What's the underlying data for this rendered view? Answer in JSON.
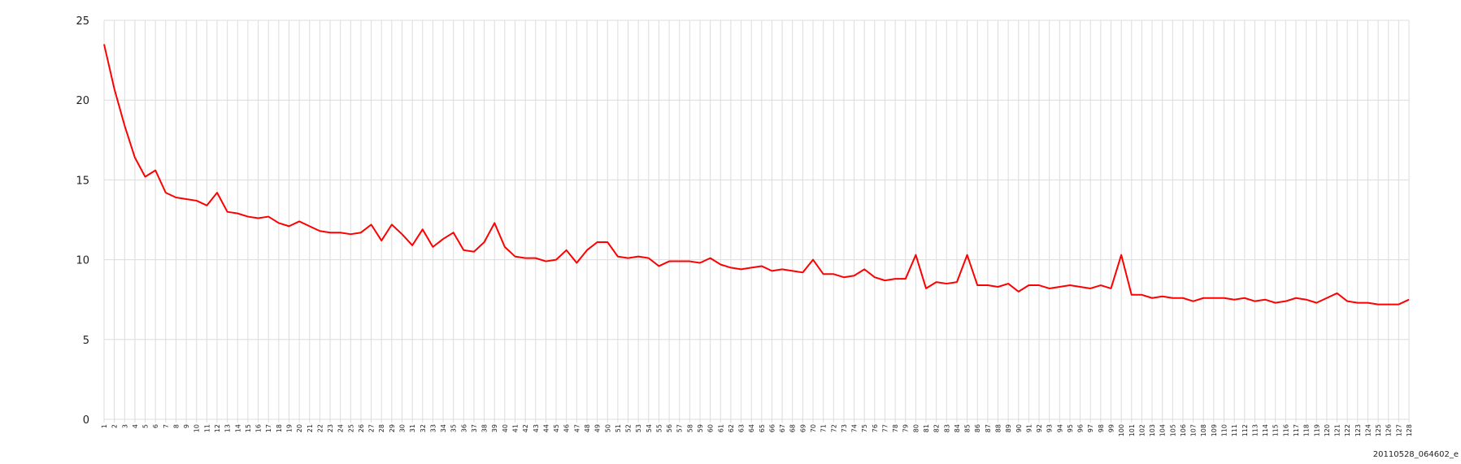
{
  "chart_data": {
    "type": "line",
    "categories": [
      1,
      2,
      3,
      4,
      5,
      6,
      7,
      8,
      9,
      10,
      11,
      12,
      13,
      14,
      15,
      16,
      17,
      18,
      19,
      20,
      21,
      22,
      23,
      24,
      25,
      26,
      27,
      28,
      29,
      30,
      31,
      32,
      33,
      34,
      35,
      36,
      37,
      38,
      39,
      40,
      41,
      42,
      43,
      44,
      45,
      46,
      47,
      48,
      49,
      50,
      51,
      52,
      53,
      54,
      55,
      56,
      57,
      58,
      59,
      60,
      61,
      62,
      63,
      64,
      65,
      66,
      67,
      68,
      69,
      70,
      71,
      72,
      73,
      74,
      75,
      76,
      77,
      78,
      79,
      80,
      81,
      82,
      83,
      84,
      85,
      86,
      87,
      88,
      89,
      90,
      91,
      92,
      93,
      94,
      95,
      96,
      97,
      98,
      99,
      100,
      101,
      102,
      103,
      104,
      105,
      106,
      107,
      108,
      109,
      110,
      111,
      112,
      113,
      114,
      115,
      116,
      117,
      118,
      119,
      120,
      121,
      122,
      123,
      124,
      125,
      126,
      127,
      128
    ],
    "values": [
      23.5,
      20.7,
      18.4,
      16.4,
      15.2,
      15.6,
      14.2,
      13.9,
      13.8,
      13.7,
      13.4,
      14.2,
      13.0,
      12.9,
      12.7,
      12.6,
      12.7,
      12.3,
      12.1,
      12.4,
      12.1,
      11.8,
      11.7,
      11.7,
      11.6,
      11.7,
      12.2,
      11.2,
      12.2,
      11.6,
      10.9,
      11.9,
      10.8,
      11.3,
      11.7,
      10.6,
      10.5,
      11.1,
      12.3,
      10.8,
      10.2,
      10.1,
      10.1,
      9.9,
      10.0,
      10.6,
      9.8,
      10.6,
      11.1,
      11.1,
      10.2,
      10.1,
      10.2,
      10.1,
      9.6,
      9.9,
      9.9,
      9.9,
      9.8,
      10.1,
      9.7,
      9.5,
      9.4,
      9.5,
      9.6,
      9.3,
      9.4,
      9.3,
      9.2,
      10.0,
      9.1,
      9.1,
      8.9,
      9.0,
      9.4,
      8.9,
      8.7,
      8.8,
      8.8,
      10.3,
      8.2,
      8.6,
      8.5,
      8.6,
      10.3,
      8.4,
      8.4,
      8.3,
      8.5,
      8.0,
      8.4,
      8.4,
      8.2,
      8.3,
      8.4,
      8.3,
      8.2,
      8.4,
      8.2,
      10.3,
      7.8,
      7.8,
      7.6,
      7.7,
      7.6,
      7.6,
      7.4,
      7.6,
      7.6,
      7.6,
      7.5,
      7.6,
      7.4,
      7.5,
      7.3,
      7.4,
      7.6,
      7.5,
      7.3,
      7.6,
      7.9,
      7.4,
      7.3,
      7.3,
      7.2,
      7.2,
      7.2,
      7.5
    ],
    "color": "#ff0000",
    "ylim": [
      0,
      25
    ],
    "yticks": [
      0,
      5,
      10,
      15,
      20,
      25
    ],
    "grid": true,
    "footer": "20110528_064602_e"
  }
}
